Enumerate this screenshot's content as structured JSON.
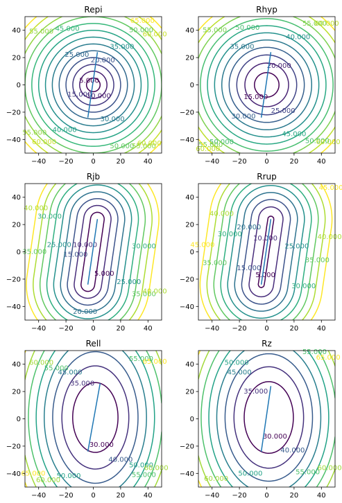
{
  "figure": {
    "x_ticks": [
      "−40",
      "−20",
      "0",
      "20",
      "40"
    ],
    "y_ticks": [
      "−40",
      "−20",
      "0",
      "20",
      "40"
    ]
  },
  "chart_data": [
    {
      "type": "contour",
      "title": "Repi",
      "xlim": [
        -50,
        50
      ],
      "ylim": [
        -50,
        50
      ],
      "fault": [
        [
          -4,
          -24
        ],
        [
          3,
          24
        ]
      ],
      "levels": [
        5,
        10,
        15,
        20,
        25,
        30,
        35,
        40,
        45,
        50,
        55,
        60,
        65
      ],
      "labels": [
        {
          "text": "5.000",
          "x": -3,
          "y": 3
        },
        {
          "text": "10.000",
          "x": 4,
          "y": -8
        },
        {
          "text": "15.000",
          "x": -10,
          "y": -7
        },
        {
          "text": "20.000",
          "x": 7,
          "y": 18
        },
        {
          "text": "25.000",
          "x": -12,
          "y": 22
        },
        {
          "text": "30.000",
          "x": 14,
          "y": -25
        },
        {
          "text": "35.000",
          "x": 21,
          "y": 28
        },
        {
          "text": "40.000",
          "x": -21,
          "y": -33
        },
        {
          "text": "45.000",
          "x": -19,
          "y": 41
        },
        {
          "text": "50.000",
          "x": 35,
          "y": 40
        },
        {
          "text": "50.000",
          "x": 21,
          "y": -45
        },
        {
          "text": "55.000",
          "x": -43,
          "y": -35
        },
        {
          "text": "55.000",
          "x": -38,
          "y": 39
        },
        {
          "text": "55.000",
          "x": 37,
          "y": -45
        },
        {
          "text": "60.000",
          "x": -36,
          "y": -42
        },
        {
          "text": "60.000",
          "x": 45,
          "y": 37
        },
        {
          "text": "60.000",
          "x": 41,
          "y": -43
        },
        {
          "text": "65.000",
          "x": 36,
          "y": 47
        }
      ]
    },
    {
      "type": "contour",
      "title": "Rhyp",
      "xlim": [
        -50,
        50
      ],
      "ylim": [
        -50,
        50
      ],
      "fault": [
        [
          -4,
          -24
        ],
        [
          3,
          24
        ]
      ],
      "levels": [
        15,
        20,
        25,
        30,
        35,
        40,
        45,
        50,
        55,
        60,
        65
      ],
      "labels": [
        {
          "text": "15.000",
          "x": -8,
          "y": -9
        },
        {
          "text": "20.000",
          "x": 9,
          "y": 14
        },
        {
          "text": "25.000",
          "x": 12,
          "y": -19
        },
        {
          "text": "30.000",
          "x": -17,
          "y": -23
        },
        {
          "text": "35.000",
          "x": -18,
          "y": 28
        },
        {
          "text": "40.000",
          "x": 23,
          "y": 35
        },
        {
          "text": "45.000",
          "x": 20,
          "y": -36
        },
        {
          "text": "50.000",
          "x": -14,
          "y": 42
        },
        {
          "text": "50.000",
          "x": -33,
          "y": -42
        },
        {
          "text": "50.000",
          "x": 37,
          "y": -41
        },
        {
          "text": "55.000",
          "x": -38,
          "y": 40
        },
        {
          "text": "55.000",
          "x": 35,
          "y": 45
        },
        {
          "text": "55.000",
          "x": -41,
          "y": -44
        },
        {
          "text": "60.000",
          "x": 44,
          "y": 45
        },
        {
          "text": "60.000",
          "x": -43,
          "y": -47
        },
        {
          "text": "60.000",
          "x": 45,
          "y": -42
        }
      ]
    },
    {
      "type": "contour",
      "title": "Rjb",
      "xlim": [
        -50,
        50
      ],
      "ylim": [
        -50,
        50
      ],
      "fault": [
        [
          -4,
          -24
        ],
        [
          3,
          24
        ]
      ],
      "levels": [
        5,
        10,
        15,
        20,
        25,
        30,
        35,
        40,
        45
      ],
      "labels": [
        {
          "text": "5.000",
          "x": 8,
          "y": -16
        },
        {
          "text": "10.000",
          "x": -6,
          "y": 5
        },
        {
          "text": "15.000",
          "x": -13,
          "y": -2
        },
        {
          "text": "20.000",
          "x": -6,
          "y": -44
        },
        {
          "text": "25.000",
          "x": -25,
          "y": 5
        },
        {
          "text": "25.000",
          "x": 26,
          "y": -22
        },
        {
          "text": "30.000",
          "x": -32,
          "y": 26
        },
        {
          "text": "30.000",
          "x": 37,
          "y": 4
        },
        {
          "text": "35.000",
          "x": -43,
          "y": 0
        },
        {
          "text": "35.000",
          "x": 37,
          "y": -31
        },
        {
          "text": "40.000",
          "x": -42,
          "y": 32
        },
        {
          "text": "40.000",
          "x": 45,
          "y": -29
        }
      ]
    },
    {
      "type": "contour",
      "title": "Rrup",
      "xlim": [
        -50,
        50
      ],
      "ylim": [
        -50,
        50
      ],
      "fault": [
        [
          -4,
          -24
        ],
        [
          3,
          24
        ]
      ],
      "levels": [
        5,
        10,
        15,
        20,
        25,
        30,
        35,
        40,
        45
      ],
      "labels": [
        {
          "text": "5.000",
          "x": -1,
          "y": -17
        },
        {
          "text": "10.000",
          "x": -1,
          "y": 10
        },
        {
          "text": "15.000",
          "x": -13,
          "y": -12
        },
        {
          "text": "20.000",
          "x": -13,
          "y": 18
        },
        {
          "text": "25.000",
          "x": 22,
          "y": 4
        },
        {
          "text": "30.000",
          "x": -27,
          "y": 13
        },
        {
          "text": "30.000",
          "x": 27,
          "y": -25
        },
        {
          "text": "35.000",
          "x": -38,
          "y": -8
        },
        {
          "text": "35.000",
          "x": 37,
          "y": -6
        },
        {
          "text": "40.000",
          "x": -33,
          "y": 28
        },
        {
          "text": "40.000",
          "x": 46,
          "y": 11
        },
        {
          "text": "45.000",
          "x": -47,
          "y": 5
        },
        {
          "text": "45.000",
          "x": 47,
          "y": 47
        }
      ]
    },
    {
      "type": "contour",
      "title": "Rell",
      "xlim": [
        -50,
        50
      ],
      "ylim": [
        -50,
        50
      ],
      "fault": [
        [
          -4,
          -24
        ],
        [
          5,
          26
        ]
      ],
      "levels": [
        30,
        35,
        40,
        45,
        50,
        55,
        60,
        65
      ],
      "labels": [
        {
          "text": "30.000",
          "x": 6,
          "y": -19
        },
        {
          "text": "35.000",
          "x": -8,
          "y": 26
        },
        {
          "text": "40.000",
          "x": 20,
          "y": -30
        },
        {
          "text": "45.000",
          "x": -17,
          "y": 34
        },
        {
          "text": "50.000",
          "x": -18,
          "y": -42
        },
        {
          "text": "50.000",
          "x": 35,
          "y": -34
        },
        {
          "text": "55.000",
          "x": -27,
          "y": 37
        },
        {
          "text": "55.000",
          "x": 35,
          "y": 44
        },
        {
          "text": "55.000",
          "x": 37,
          "y": -41
        },
        {
          "text": "60.000",
          "x": -38,
          "y": 41
        },
        {
          "text": "60.000",
          "x": -33,
          "y": -45
        },
        {
          "text": "60.000",
          "x": 46,
          "y": -36
        },
        {
          "text": "65.000",
          "x": 45,
          "y": 42
        },
        {
          "text": "65.000",
          "x": -44,
          "y": -40
        }
      ]
    },
    {
      "type": "contour",
      "title": "Rz",
      "xlim": [
        -50,
        50
      ],
      "ylim": [
        -50,
        50
      ],
      "fault": [
        [
          -4,
          -24
        ],
        [
          3,
          24
        ]
      ],
      "levels": [
        30,
        35,
        40,
        45,
        50,
        55,
        60,
        65
      ],
      "labels": [
        {
          "text": "30.000",
          "x": 6,
          "y": -13
        },
        {
          "text": "35.000",
          "x": -8,
          "y": 20
        },
        {
          "text": "40.000",
          "x": 19,
          "y": -23
        },
        {
          "text": "45.000",
          "x": -20,
          "y": 34
        },
        {
          "text": "50.000",
          "x": -22,
          "y": 41
        },
        {
          "text": "50.000",
          "x": -12,
          "y": -40
        },
        {
          "text": "55.000",
          "x": 30,
          "y": -39
        },
        {
          "text": "55.000",
          "x": 35,
          "y": 49
        },
        {
          "text": "60.000",
          "x": -37,
          "y": -44
        },
        {
          "text": "60.000",
          "x": 46,
          "y": -36
        },
        {
          "text": "65.000",
          "x": 45,
          "y": 45
        }
      ]
    }
  ]
}
